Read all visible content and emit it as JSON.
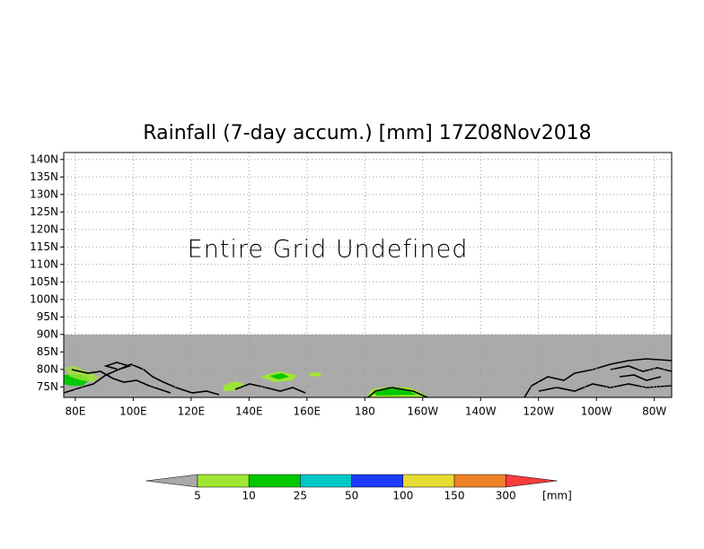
{
  "map": {
    "title": "Rainfall (7-day accum.) [mm] 17Z08Nov2018",
    "annotation": "Entire Grid Undefined",
    "xlim": [
      76,
      286
    ],
    "ylim": [
      72,
      142
    ],
    "xticks": [
      {
        "value": 80,
        "label": "80E"
      },
      {
        "value": 100,
        "label": "100E"
      },
      {
        "value": 120,
        "label": "120E"
      },
      {
        "value": 140,
        "label": "140E"
      },
      {
        "value": 160,
        "label": "160E"
      },
      180,
      {
        "value": 200,
        "label": "160W"
      },
      {
        "value": 220,
        "label": "140W"
      },
      {
        "value": 240,
        "label": "120W"
      },
      {
        "value": 260,
        "label": "100W"
      },
      {
        "value": 280,
        "label": "80W"
      }
    ],
    "yticks": [
      {
        "value": 140,
        "label": "140N"
      },
      {
        "value": 135,
        "label": "135N"
      },
      {
        "value": 130,
        "label": "130N"
      },
      {
        "value": 125,
        "label": "125N"
      },
      {
        "value": 120,
        "label": "120N"
      },
      {
        "value": 115,
        "label": "115N"
      },
      {
        "value": 110,
        "label": "110N"
      },
      {
        "value": 105,
        "label": "105N"
      },
      {
        "value": 100,
        "label": "100N"
      },
      {
        "value": 95,
        "label": "95N"
      },
      {
        "value": 90,
        "label": "90N"
      },
      {
        "value": 85,
        "label": "85N"
      },
      {
        "value": 80,
        "label": "80N"
      },
      {
        "value": 75,
        "label": "75N"
      }
    ],
    "grid": true,
    "colorbar": {
      "levels": [
        5,
        10,
        25,
        50,
        100,
        150,
        300
      ],
      "colors": [
        "#a9a9a9",
        "#a0e632",
        "#00c800",
        "#00c8c8",
        "#1e3cff",
        "#e6dc32",
        "#f08228",
        "#fa3c3c"
      ],
      "unit": "[mm]"
    }
  }
}
